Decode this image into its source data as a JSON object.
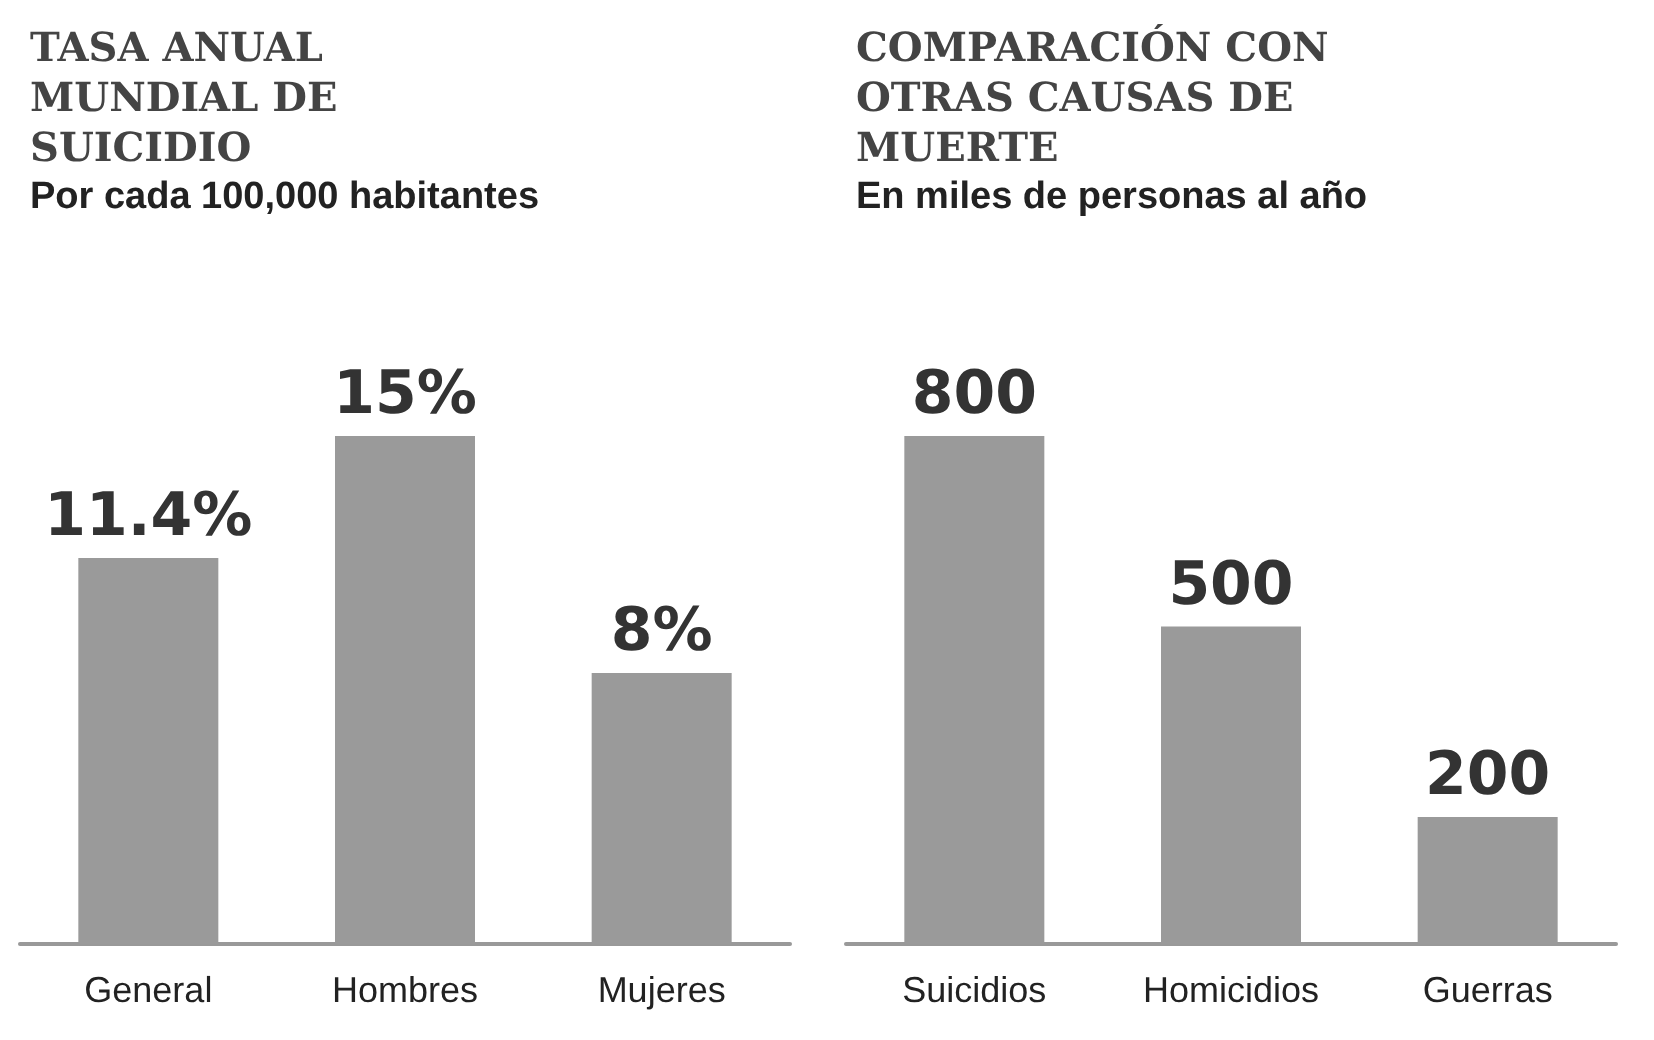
{
  "chart_data": [
    {
      "type": "bar",
      "title": "TASA ANUAL MUNDIAL DE SUICIDIO",
      "subtitle": "Por cada 100,000 habitantes",
      "categories": [
        "General",
        "Hombres",
        "Mujeres"
      ],
      "values": [
        11.4,
        15,
        8
      ],
      "value_labels": [
        "11.4%",
        "15%",
        "8%"
      ],
      "color": "#9a9a9a"
    },
    {
      "type": "bar",
      "title": "COMPARACIÓN CON OTRAS CAUSAS DE MUERTE",
      "subtitle": "En miles de personas al año",
      "categories": [
        "Suicidios",
        "Homicidios",
        "Guerras"
      ],
      "values": [
        800,
        500,
        200
      ],
      "data_labels": true,
      "color": "#9a9a9a"
    }
  ]
}
